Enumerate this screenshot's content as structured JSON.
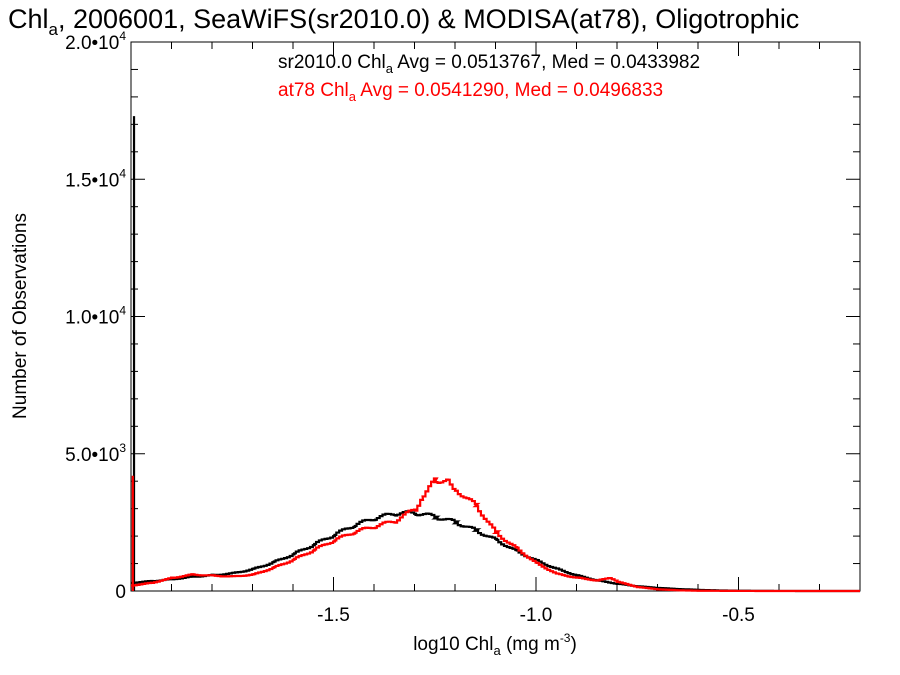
{
  "chart_data": {
    "type": "line",
    "title": {
      "prefix": "Chl",
      "prefix_sub": "a",
      "rest": ", 2006001, SeaWiFS(sr2010.0) & MODISA(at78), Oligotrophic"
    },
    "xlabel": {
      "prefix": "log10 Chl",
      "sub": "a",
      "mid": " (mg m",
      "sup": "-3",
      "suffix": ")"
    },
    "ylabel": "Number of Observations",
    "xlim": [
      -2.0,
      -0.2
    ],
    "ylim": [
      0,
      20000
    ],
    "x_ticks": [
      {
        "value": -1.5,
        "label": "-1.5"
      },
      {
        "value": -1.0,
        "label": "-1.0"
      },
      {
        "value": -0.5,
        "label": "-0.5"
      }
    ],
    "y_ticks": [
      {
        "value": 0,
        "label": "0",
        "sup": ""
      },
      {
        "value": 5000,
        "label": "5.0•10",
        "sup": "3"
      },
      {
        "value": 10000,
        "label": "1.0•10",
        "sup": "4"
      },
      {
        "value": 15000,
        "label": "1.5•10",
        "sup": "4"
      },
      {
        "value": 20000,
        "label": "2.0•10",
        "sup": "4"
      }
    ],
    "grid": false,
    "legend_position": "top-right",
    "series": [
      {
        "name": "sr2010.0",
        "color": "#000000",
        "legend": {
          "pre": "sr2010.0 Chl",
          "sub": "a",
          "post": " Avg = 0.0513767, Med = 0.0433982"
        },
        "spike": {
          "x": -1.995,
          "y": 17300
        },
        "points": [
          [
            -2.0,
            300
          ],
          [
            -1.95,
            360
          ],
          [
            -1.9,
            430
          ],
          [
            -1.85,
            520
          ],
          [
            -1.8,
            580
          ],
          [
            -1.75,
            650
          ],
          [
            -1.7,
            800
          ],
          [
            -1.65,
            1050
          ],
          [
            -1.6,
            1350
          ],
          [
            -1.55,
            1700
          ],
          [
            -1.5,
            2050
          ],
          [
            -1.45,
            2400
          ],
          [
            -1.4,
            2650
          ],
          [
            -1.35,
            2820
          ],
          [
            -1.3,
            2840
          ],
          [
            -1.25,
            2700
          ],
          [
            -1.2,
            2500
          ],
          [
            -1.15,
            2200
          ],
          [
            -1.1,
            1850
          ],
          [
            -1.05,
            1450
          ],
          [
            -1.0,
            1100
          ],
          [
            -0.95,
            800
          ],
          [
            -0.9,
            560
          ],
          [
            -0.85,
            380
          ],
          [
            -0.8,
            260
          ],
          [
            -0.75,
            170
          ],
          [
            -0.7,
            110
          ],
          [
            -0.65,
            70
          ],
          [
            -0.6,
            40
          ],
          [
            -0.55,
            20
          ],
          [
            -0.5,
            10
          ],
          [
            -0.45,
            5
          ],
          [
            -0.4,
            2
          ],
          [
            -0.3,
            0
          ],
          [
            -0.2,
            0
          ]
        ]
      },
      {
        "name": "at78",
        "color": "#ff0000",
        "legend": {
          "pre": "at78 Chl",
          "sub": "a",
          "post": " Avg = 0.0541290, Med = 0.0496833"
        },
        "spike": {
          "x": -1.998,
          "y": 4200
        },
        "points": [
          [
            -2.0,
            200
          ],
          [
            -1.95,
            300
          ],
          [
            -1.9,
            480
          ],
          [
            -1.85,
            600
          ],
          [
            -1.8,
            560
          ],
          [
            -1.75,
            530
          ],
          [
            -1.7,
            600
          ],
          [
            -1.65,
            850
          ],
          [
            -1.6,
            1150
          ],
          [
            -1.55,
            1500
          ],
          [
            -1.5,
            1850
          ],
          [
            -1.45,
            2150
          ],
          [
            -1.4,
            2350
          ],
          [
            -1.35,
            2550
          ],
          [
            -1.3,
            3000
          ],
          [
            -1.28,
            3500
          ],
          [
            -1.25,
            4050
          ],
          [
            -1.22,
            4000
          ],
          [
            -1.2,
            3700
          ],
          [
            -1.15,
            3100
          ],
          [
            -1.1,
            2100
          ],
          [
            -1.05,
            1550
          ],
          [
            -1.0,
            1000
          ],
          [
            -0.95,
            620
          ],
          [
            -0.9,
            480
          ],
          [
            -0.85,
            380
          ],
          [
            -0.82,
            480
          ],
          [
            -0.8,
            330
          ],
          [
            -0.75,
            140
          ],
          [
            -0.7,
            60
          ],
          [
            -0.65,
            25
          ],
          [
            -0.6,
            10
          ],
          [
            -0.5,
            2
          ],
          [
            -0.4,
            0
          ],
          [
            -0.2,
            0
          ]
        ]
      }
    ]
  }
}
